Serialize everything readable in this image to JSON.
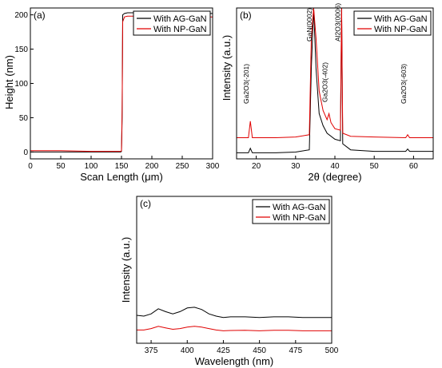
{
  "chart_data": [
    {
      "panel_label": "(a)",
      "type": "line",
      "xlabel": "Scan Length (μm)",
      "ylabel": "Height (nm)",
      "xlim": [
        0,
        300
      ],
      "ylim": [
        -10,
        210
      ],
      "xticks": [
        "0",
        "50",
        "100",
        "150",
        "200",
        "250",
        "300"
      ],
      "yticks": [
        "0",
        "50",
        "100",
        "150",
        "200"
      ],
      "legend_position": "top-right",
      "series": [
        {
          "name": "With AG-GaN",
          "color": "#000000",
          "x": [
            0,
            50,
            100,
            140,
            148,
            149,
            150,
            151,
            152,
            155,
            160,
            200,
            250,
            300
          ],
          "y": [
            0,
            0,
            0,
            0,
            0,
            0,
            1,
            50,
            200,
            202,
            203,
            203,
            202,
            202
          ]
        },
        {
          "name": "With NP-GaN",
          "color": "#e00000",
          "x": [
            0,
            50,
            100,
            140,
            148,
            149,
            150,
            151,
            152,
            155,
            160,
            200,
            250,
            300
          ],
          "y": [
            2,
            2,
            1,
            1,
            1,
            1,
            2,
            60,
            190,
            197,
            198,
            198,
            197,
            197
          ]
        }
      ]
    },
    {
      "panel_label": "(b)",
      "type": "line",
      "xlabel": "2θ (degree)",
      "ylabel": "Intensity (a.u.)",
      "xlim": [
        15,
        65
      ],
      "ylim": [
        0,
        1
      ],
      "xticks": [
        "20",
        "30",
        "40",
        "50",
        "60"
      ],
      "legend_position": "top-right",
      "annotations": [
        {
          "text": "Ga2O3(-201)",
          "x": 18.5
        },
        {
          "text": "GaN(0002)",
          "x": 34.5
        },
        {
          "text": "Ga2O3(-402)",
          "x": 38.5
        },
        {
          "text": "Al2O3(0006)",
          "x": 41.7
        },
        {
          "text": "Ga2O3(-603)",
          "x": 58.5
        }
      ],
      "series": [
        {
          "name": "With AG-GaN",
          "color": "#000000",
          "x": [
            15,
            18,
            18.5,
            19,
            25,
            30,
            33.5,
            34,
            34.6,
            35.2,
            36,
            37,
            38,
            40,
            41.4,
            41.7,
            42,
            44,
            50,
            58,
            58.5,
            59,
            65
          ],
          "y": [
            0.04,
            0.04,
            0.07,
            0.04,
            0.04,
            0.045,
            0.06,
            0.6,
            1.0,
            0.6,
            0.3,
            0.22,
            0.17,
            0.13,
            0.12,
            1.0,
            0.1,
            0.06,
            0.05,
            0.05,
            0.065,
            0.05,
            0.05
          ]
        },
        {
          "name": "With NP-GaN",
          "color": "#e00000",
          "x": [
            15,
            18,
            18.5,
            19,
            25,
            30,
            33.5,
            34,
            34.6,
            35.2,
            36,
            37,
            38,
            38.5,
            39,
            40,
            41.4,
            41.7,
            42,
            44,
            50,
            58,
            58.5,
            59,
            65
          ],
          "y": [
            0.14,
            0.14,
            0.25,
            0.14,
            0.14,
            0.145,
            0.16,
            0.8,
            1.0,
            0.8,
            0.45,
            0.32,
            0.26,
            0.3,
            0.24,
            0.2,
            0.19,
            1.0,
            0.17,
            0.15,
            0.145,
            0.14,
            0.16,
            0.14,
            0.14
          ]
        }
      ]
    },
    {
      "panel_label": "(c)",
      "type": "line",
      "xlabel": "Wavelength (nm)",
      "ylabel": "Intensity (a.u.)",
      "xlim": [
        365,
        500
      ],
      "ylim": [
        0,
        1
      ],
      "xticks": [
        "375",
        "400",
        "425",
        "450",
        "475",
        "500"
      ],
      "legend_position": "top-right",
      "series": [
        {
          "name": "With AG-GaN",
          "color": "#000000",
          "x": [
            365,
            370,
            375,
            380,
            385,
            390,
            395,
            400,
            405,
            410,
            415,
            420,
            425,
            430,
            440,
            450,
            460,
            470,
            480,
            490,
            500
          ],
          "y": [
            0.19,
            0.185,
            0.2,
            0.235,
            0.215,
            0.2,
            0.215,
            0.24,
            0.245,
            0.23,
            0.2,
            0.185,
            0.175,
            0.18,
            0.18,
            0.175,
            0.18,
            0.18,
            0.175,
            0.175,
            0.175
          ]
        },
        {
          "name": "With NP-GaN",
          "color": "#e00000",
          "x": [
            365,
            370,
            375,
            380,
            385,
            390,
            395,
            400,
            405,
            410,
            415,
            420,
            425,
            430,
            440,
            450,
            460,
            470,
            480,
            490,
            500
          ],
          "y": [
            0.09,
            0.09,
            0.1,
            0.115,
            0.105,
            0.095,
            0.1,
            0.11,
            0.115,
            0.11,
            0.1,
            0.09,
            0.085,
            0.087,
            0.088,
            0.085,
            0.088,
            0.088,
            0.085,
            0.085,
            0.085
          ]
        }
      ]
    }
  ]
}
